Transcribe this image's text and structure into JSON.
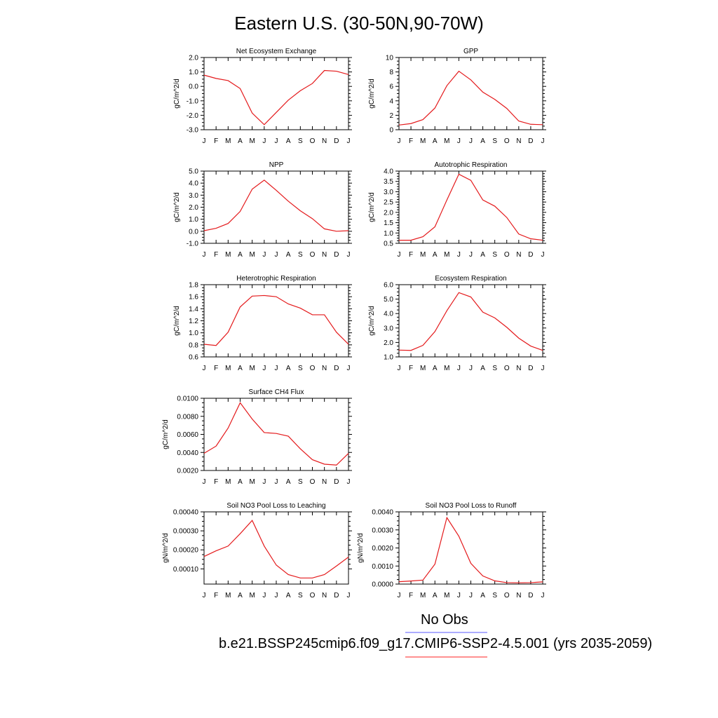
{
  "title": "Eastern U.S. (30-50N,90-70W)",
  "legend": [
    {
      "label": "No Obs",
      "color": "#5a5aff"
    },
    {
      "label": "b.e21.BSSP245cmip6.f09_g17.CMIP6-SSP2-4.5.001 (yrs 2035-2059)",
      "color": "#ff2020"
    }
  ],
  "series_color": "#e41a1c",
  "chart_data": [
    {
      "type": "line",
      "title": "Net Ecosystem Exchange",
      "ylabel": "gC/m^2/d",
      "categories": [
        "J",
        "F",
        "M",
        "A",
        "M",
        "J",
        "J",
        "A",
        "S",
        "O",
        "N",
        "D",
        "J"
      ],
      "ylim": [
        -3.0,
        2.0
      ],
      "yticks": [
        "-3.0",
        "-2.0",
        "-1.0",
        "0.0",
        "1.0",
        "2.0"
      ],
      "yticks_v": [
        -3.0,
        -2.0,
        -1.0,
        0.0,
        1.0,
        2.0
      ],
      "values": [
        0.78,
        0.55,
        0.4,
        -0.15,
        -1.85,
        -2.65,
        -1.8,
        -0.95,
        -0.3,
        0.2,
        1.1,
        1.05,
        0.82
      ]
    },
    {
      "type": "line",
      "title": "GPP",
      "ylabel": "gC/m^2/d",
      "categories": [
        "J",
        "F",
        "M",
        "A",
        "M",
        "J",
        "J",
        "A",
        "S",
        "O",
        "N",
        "D",
        "J"
      ],
      "ylim": [
        0,
        10
      ],
      "yticks": [
        "0",
        "2",
        "4",
        "6",
        "8",
        "10"
      ],
      "yticks_v": [
        0,
        2,
        4,
        6,
        8,
        10
      ],
      "values": [
        0.65,
        0.85,
        1.4,
        3.0,
        6.1,
        8.1,
        6.9,
        5.2,
        4.2,
        2.95,
        1.2,
        0.75,
        0.7
      ]
    },
    {
      "type": "line",
      "title": "NPP",
      "ylabel": "gC/m^2/d",
      "categories": [
        "J",
        "F",
        "M",
        "A",
        "M",
        "J",
        "J",
        "A",
        "S",
        "O",
        "N",
        "D",
        "J"
      ],
      "ylim": [
        -1.0,
        5.0
      ],
      "yticks": [
        "-1.0",
        "0.0",
        "1.0",
        "2.0",
        "3.0",
        "4.0",
        "5.0"
      ],
      "yticks_v": [
        -1.0,
        0.0,
        1.0,
        2.0,
        3.0,
        4.0,
        5.0
      ],
      "values": [
        0.05,
        0.25,
        0.65,
        1.65,
        3.5,
        4.25,
        3.4,
        2.5,
        1.7,
        1.05,
        0.2,
        0.0,
        0.05
      ]
    },
    {
      "type": "line",
      "title": "Autotrophic Respiration",
      "ylabel": "gC/m^2/d",
      "categories": [
        "J",
        "F",
        "M",
        "A",
        "M",
        "J",
        "J",
        "A",
        "S",
        "O",
        "N",
        "D",
        "J"
      ],
      "ylim": [
        0.5,
        4.0
      ],
      "yticks": [
        "0.5",
        "1.0",
        "1.5",
        "2.0",
        "2.5",
        "3.0",
        "3.5",
        "4.0"
      ],
      "yticks_v": [
        0.5,
        1.0,
        1.5,
        2.0,
        2.5,
        3.0,
        3.5,
        4.0
      ],
      "values": [
        0.65,
        0.65,
        0.82,
        1.3,
        2.6,
        3.85,
        3.55,
        2.6,
        2.3,
        1.75,
        0.95,
        0.72,
        0.65
      ]
    },
    {
      "type": "line",
      "title": "Heterotrophic Respiration",
      "ylabel": "gC/m^2/d",
      "categories": [
        "J",
        "F",
        "M",
        "A",
        "M",
        "J",
        "J",
        "A",
        "S",
        "O",
        "N",
        "D",
        "J"
      ],
      "ylim": [
        0.6,
        1.8
      ],
      "yticks": [
        "0.6",
        "0.8",
        "1.0",
        "1.2",
        "1.4",
        "1.6",
        "1.8"
      ],
      "yticks_v": [
        0.6,
        0.8,
        1.0,
        1.2,
        1.4,
        1.6,
        1.8
      ],
      "values": [
        0.81,
        0.79,
        1.01,
        1.43,
        1.61,
        1.62,
        1.6,
        1.48,
        1.41,
        1.3,
        1.3,
        1.01,
        0.81
      ]
    },
    {
      "type": "line",
      "title": "Ecosystem Respiration",
      "ylabel": "gC/m^2/d",
      "categories": [
        "J",
        "F",
        "M",
        "A",
        "M",
        "J",
        "J",
        "A",
        "S",
        "O",
        "N",
        "D",
        "J"
      ],
      "ylim": [
        1.0,
        6.0
      ],
      "yticks": [
        "1.0",
        "2.0",
        "3.0",
        "4.0",
        "5.0",
        "6.0"
      ],
      "yticks_v": [
        1.0,
        2.0,
        3.0,
        4.0,
        5.0,
        6.0
      ],
      "values": [
        1.47,
        1.45,
        1.8,
        2.75,
        4.2,
        5.45,
        5.15,
        4.1,
        3.7,
        3.05,
        2.3,
        1.75,
        1.45
      ]
    },
    {
      "type": "line",
      "title": "Surface CH4 Flux",
      "ylabel": "gC/m^2/d",
      "categories": [
        "J",
        "F",
        "M",
        "A",
        "M",
        "J",
        "J",
        "A",
        "S",
        "O",
        "N",
        "D",
        "J"
      ],
      "ylim": [
        0.002,
        0.01
      ],
      "yticks": [
        "0.0020",
        "0.0040",
        "0.0060",
        "0.0080",
        "0.0100"
      ],
      "yticks_v": [
        0.002,
        0.004,
        0.006,
        0.008,
        0.01
      ],
      "values": [
        0.0039,
        0.0047,
        0.0067,
        0.0095,
        0.0077,
        0.0062,
        0.0061,
        0.0058,
        0.0044,
        0.0032,
        0.0027,
        0.0026,
        0.0039
      ]
    },
    {
      "type": "line",
      "title": "Soil NO3 Pool Loss to Leaching",
      "ylabel": "gN/m^2/d",
      "categories": [
        "J",
        "F",
        "M",
        "A",
        "M",
        "J",
        "J",
        "A",
        "S",
        "O",
        "N",
        "D",
        "J"
      ],
      "ylim": [
        2e-05,
        0.0004
      ],
      "yticks": [
        "0.00010",
        "0.00020",
        "0.00030",
        "0.00040"
      ],
      "yticks_v": [
        0.0001,
        0.0002,
        0.0003,
        0.0004
      ],
      "values": [
        0.000165,
        0.000195,
        0.00022,
        0.000285,
        0.000355,
        0.00022,
        0.00012,
        7e-05,
        5.2e-05,
        5.2e-05,
        7e-05,
        0.000115,
        0.000162
      ]
    },
    {
      "type": "line",
      "title": "Soil NO3 Pool Loss to Runoff",
      "ylabel": "gN/m^2/d",
      "categories": [
        "J",
        "F",
        "M",
        "A",
        "M",
        "J",
        "J",
        "A",
        "S",
        "O",
        "N",
        "D",
        "J"
      ],
      "ylim": [
        0.0,
        0.004
      ],
      "yticks": [
        "0.0000",
        "0.0010",
        "0.0020",
        "0.0030",
        "0.0040"
      ],
      "yticks_v": [
        0.0,
        0.001,
        0.002,
        0.003,
        0.004
      ],
      "values": [
        0.00013,
        0.00017,
        0.00022,
        0.0011,
        0.00368,
        0.00265,
        0.00115,
        0.00045,
        0.00018,
        8e-05,
        7e-05,
        8e-05,
        0.00012
      ]
    }
  ]
}
